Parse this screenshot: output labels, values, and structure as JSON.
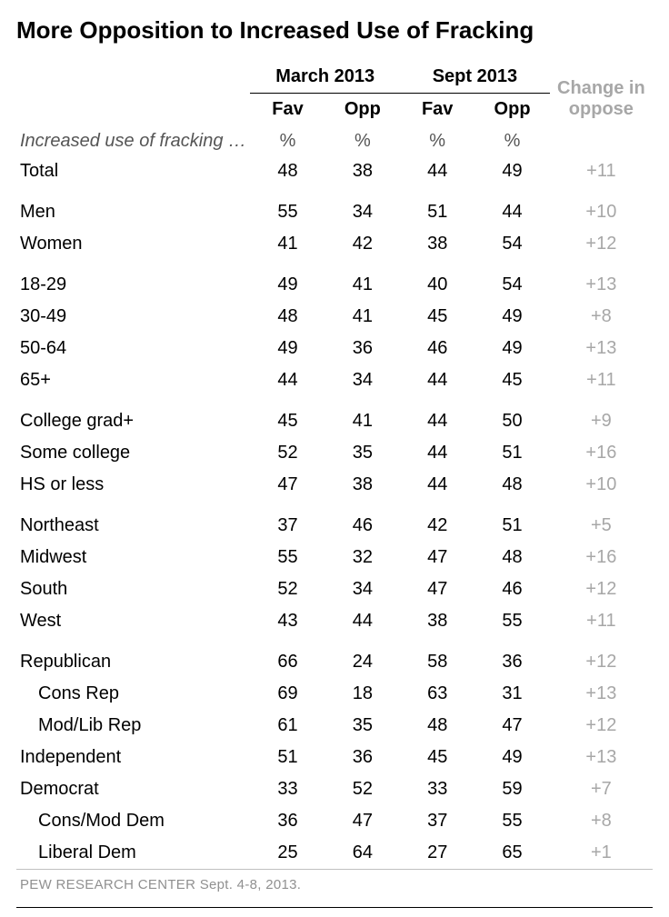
{
  "title": "More Opposition to Increased Use of Fracking",
  "header": {
    "period1": "March 2013",
    "period2": "Sept 2013",
    "fav": "Fav",
    "opp": "Opp",
    "change": "Change in oppose"
  },
  "stub": {
    "lead": "Increased use of fracking …",
    "pct": "%"
  },
  "groups": [
    {
      "rows": [
        {
          "label": "Total",
          "fav1": "48",
          "opp1": "38",
          "fav2": "44",
          "opp2": "49",
          "chg": "+11"
        }
      ]
    },
    {
      "rows": [
        {
          "label": "Men",
          "fav1": "55",
          "opp1": "34",
          "fav2": "51",
          "opp2": "44",
          "chg": "+10"
        },
        {
          "label": "Women",
          "fav1": "41",
          "opp1": "42",
          "fav2": "38",
          "opp2": "54",
          "chg": "+12"
        }
      ]
    },
    {
      "rows": [
        {
          "label": "18-29",
          "fav1": "49",
          "opp1": "41",
          "fav2": "40",
          "opp2": "54",
          "chg": "+13"
        },
        {
          "label": "30-49",
          "fav1": "48",
          "opp1": "41",
          "fav2": "45",
          "opp2": "49",
          "chg": "+8"
        },
        {
          "label": "50-64",
          "fav1": "49",
          "opp1": "36",
          "fav2": "46",
          "opp2": "49",
          "chg": "+13"
        },
        {
          "label": "65+",
          "fav1": "44",
          "opp1": "34",
          "fav2": "44",
          "opp2": "45",
          "chg": "+11"
        }
      ]
    },
    {
      "rows": [
        {
          "label": "College grad+",
          "fav1": "45",
          "opp1": "41",
          "fav2": "44",
          "opp2": "50",
          "chg": "+9"
        },
        {
          "label": "Some college",
          "fav1": "52",
          "opp1": "35",
          "fav2": "44",
          "opp2": "51",
          "chg": "+16"
        },
        {
          "label": "HS or less",
          "fav1": "47",
          "opp1": "38",
          "fav2": "44",
          "opp2": "48",
          "chg": "+10"
        }
      ]
    },
    {
      "rows": [
        {
          "label": "Northeast",
          "fav1": "37",
          "opp1": "46",
          "fav2": "42",
          "opp2": "51",
          "chg": "+5"
        },
        {
          "label": "Midwest",
          "fav1": "55",
          "opp1": "32",
          "fav2": "47",
          "opp2": "48",
          "chg": "+16"
        },
        {
          "label": "South",
          "fav1": "52",
          "opp1": "34",
          "fav2": "47",
          "opp2": "46",
          "chg": "+12"
        },
        {
          "label": "West",
          "fav1": "43",
          "opp1": "44",
          "fav2": "38",
          "opp2": "55",
          "chg": "+11"
        }
      ]
    },
    {
      "rows": [
        {
          "label": "Republican",
          "fav1": "66",
          "opp1": "24",
          "fav2": "58",
          "opp2": "36",
          "chg": "+12"
        },
        {
          "label": "Cons Rep",
          "indent": true,
          "fav1": "69",
          "opp1": "18",
          "fav2": "63",
          "opp2": "31",
          "chg": "+13"
        },
        {
          "label": "Mod/Lib Rep",
          "indent": true,
          "fav1": "61",
          "opp1": "35",
          "fav2": "48",
          "opp2": "47",
          "chg": "+12"
        },
        {
          "label": "Independent",
          "fav1": "51",
          "opp1": "36",
          "fav2": "45",
          "opp2": "49",
          "chg": "+13"
        },
        {
          "label": "Democrat",
          "fav1": "33",
          "opp1": "52",
          "fav2": "33",
          "opp2": "59",
          "chg": "+7"
        },
        {
          "label": "Cons/Mod Dem",
          "indent": true,
          "fav1": "36",
          "opp1": "47",
          "fav2": "37",
          "opp2": "55",
          "chg": "+8"
        },
        {
          "label": "Liberal Dem",
          "indent": true,
          "fav1": "25",
          "opp1": "64",
          "fav2": "27",
          "opp2": "65",
          "chg": "+1"
        }
      ]
    }
  ],
  "footer": "PEW RESEARCH CENTER Sept. 4-8, 2013.",
  "style": {
    "title_fontsize": 26,
    "body_fontsize": 20,
    "footer_fontsize": 15,
    "text_color": "#000000",
    "muted_color": "#a7a7a7",
    "footer_color": "#909090",
    "rule_color": "#c0c0c0",
    "background": "#ffffff"
  }
}
